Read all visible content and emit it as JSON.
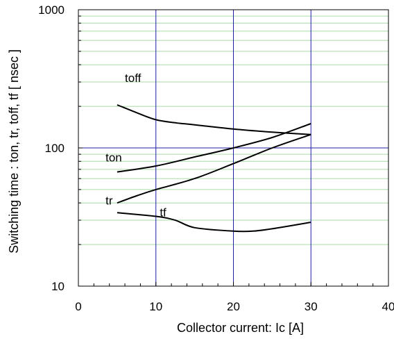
{
  "chart_data": {
    "type": "line",
    "title": "",
    "xlabel": "Collector current: Ic [A]",
    "ylabel": "Switching time : ton, tr, toff, tf [ nsec ]",
    "xlim": [
      0,
      40
    ],
    "ylim": [
      10,
      1000
    ],
    "yscale": "log",
    "grid": true,
    "x_ticks": [
      0,
      10,
      20,
      30,
      40
    ],
    "y_ticks": [
      10,
      100,
      1000
    ],
    "x_tick_labels": [
      "0",
      "10",
      "20",
      "30",
      "40"
    ],
    "y_tick_labels": [
      "10",
      "100",
      "1000"
    ],
    "colors": {
      "curves": "#000000",
      "major_grid": "#1f1fa6",
      "minor_grid": "#a6dba6",
      "frame": "#000000"
    },
    "series": [
      {
        "name": "toff",
        "x": [
          5,
          7.5,
          10,
          12.5,
          15,
          20,
          25,
          30
        ],
        "y": [
          205,
          180,
          160,
          152,
          147,
          137,
          130,
          125
        ]
      },
      {
        "name": "ton",
        "x": [
          5,
          10,
          15,
          20,
          25,
          30
        ],
        "y": [
          67,
          74,
          86,
          100,
          119,
          150
        ]
      },
      {
        "name": "tr",
        "x": [
          5,
          7.5,
          10,
          15,
          20,
          25,
          30
        ],
        "y": [
          40,
          45,
          50,
          60,
          77,
          100,
          125
        ]
      },
      {
        "name": "tf",
        "x": [
          5,
          10,
          12.5,
          15,
          20,
          22.5,
          25,
          30
        ],
        "y": [
          34,
          32,
          30,
          26.5,
          25,
          25,
          26,
          29
        ]
      }
    ],
    "annotations": [
      {
        "text": "toff",
        "x": 6,
        "y": 300
      },
      {
        "text": "ton",
        "x": 3.5,
        "y": 80
      },
      {
        "text": "tr",
        "x": 3.5,
        "y": 39
      },
      {
        "text": "tf",
        "x": 10.5,
        "y": 32
      }
    ]
  }
}
